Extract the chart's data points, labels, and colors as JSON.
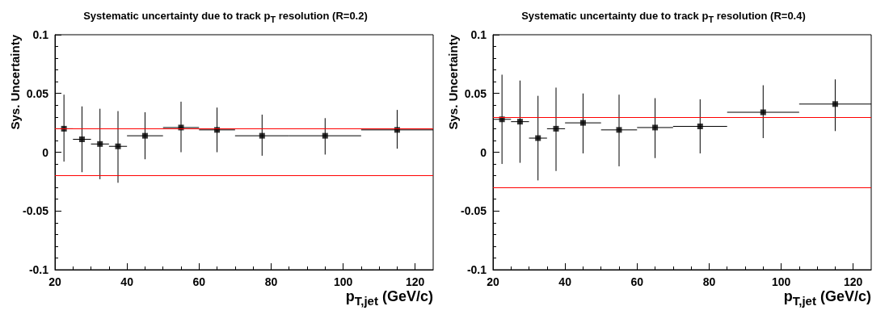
{
  "chart_data": [
    {
      "type": "scatter",
      "title": "Systematic uncertainty due to track p$_{T}$ resolution (R=0.2)",
      "xlabel": "p$_{T,jet}$ (GeV/c)",
      "ylabel": "Sys. Uncertainty",
      "x": [
        22.5,
        27.5,
        32.5,
        37.5,
        45,
        55,
        65,
        77.5,
        95,
        115
      ],
      "series": [
        {
          "color": "#000000",
          "values": [
            0.02,
            0.011,
            0.007,
            0.005,
            0.014,
            0.021,
            0.019,
            0.014,
            0.014,
            0.019
          ],
          "xerrors": [
            2.5,
            2.5,
            2.5,
            2.5,
            5,
            5,
            5,
            7.5,
            10,
            10
          ],
          "errors": [
            [
              -0.008,
              0.049
            ],
            [
              -0.017,
              0.039
            ],
            [
              -0.023,
              0.037
            ],
            [
              -0.026,
              0.035
            ],
            [
              -0.006,
              0.034
            ],
            [
              0.0,
              0.043
            ],
            [
              0.0,
              0.038
            ],
            [
              -0.003,
              0.032
            ],
            [
              -0.002,
              0.029
            ],
            [
              0.003,
              0.036
            ]
          ]
        }
      ],
      "xlim": [
        20,
        125
      ],
      "xticks": [
        20,
        40,
        60,
        80,
        100,
        120
      ],
      "ylim": [
        -0.1,
        0.1
      ],
      "yticks": [
        -0.1,
        -0.05,
        0,
        0.05,
        0.1
      ],
      "grid": false,
      "marker": "square",
      "ref_lines": [
        {
          "axis": "y",
          "value": 0.02,
          "color": "#ff0000"
        },
        {
          "axis": "y",
          "value": -0.02,
          "color": "#ff0000"
        }
      ]
    },
    {
      "type": "scatter",
      "title": "Systematic uncertainty due to track p$_{T}$ resolution (R=0.4)",
      "xlabel": "p$_{T,jet}$ (GeV/c)",
      "ylabel": "Sys. Uncertainty",
      "x": [
        22.5,
        27.5,
        32.5,
        37.5,
        45,
        55,
        65,
        77.5,
        95,
        115
      ],
      "series": [
        {
          "color": "#000000",
          "values": [
            0.028,
            0.026,
            0.012,
            0.02,
            0.025,
            0.019,
            0.021,
            0.022,
            0.034,
            0.041
          ],
          "xerrors": [
            2.5,
            2.5,
            2.5,
            2.5,
            5,
            5,
            5,
            7.5,
            10,
            10
          ],
          "errors": [
            [
              -0.01,
              0.066
            ],
            [
              -0.009,
              0.061
            ],
            [
              -0.024,
              0.048
            ],
            [
              -0.016,
              0.055
            ],
            [
              -0.001,
              0.05
            ],
            [
              -0.012,
              0.049
            ],
            [
              -0.005,
              0.046
            ],
            [
              -0.001,
              0.045
            ],
            [
              0.012,
              0.057
            ],
            [
              0.018,
              0.062
            ]
          ]
        }
      ],
      "xlim": [
        20,
        125
      ],
      "xticks": [
        20,
        40,
        60,
        80,
        100,
        120
      ],
      "ylim": [
        -0.1,
        0.1
      ],
      "yticks": [
        -0.1,
        -0.05,
        0,
        0.05,
        0.1
      ],
      "grid": false,
      "marker": "square",
      "ref_lines": [
        {
          "axis": "y",
          "value": 0.03,
          "color": "#ff0000"
        },
        {
          "axis": "y",
          "value": -0.03,
          "color": "#ff0000"
        }
      ]
    }
  ]
}
